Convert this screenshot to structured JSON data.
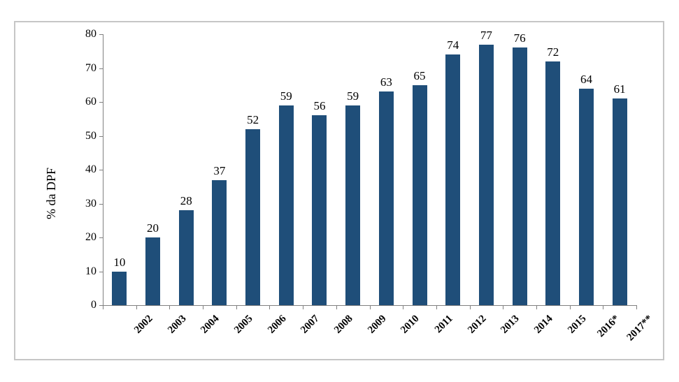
{
  "chart_data": {
    "type": "bar",
    "title": "",
    "ylabel": "% da DPF",
    "xlabel": "",
    "ylim": [
      0,
      80
    ],
    "ytick_interval": 10,
    "yticks": [
      0,
      10,
      20,
      30,
      40,
      50,
      60,
      70,
      80
    ],
    "grid": false,
    "legend": null,
    "data_labels_shown": true,
    "categories": [
      "2002",
      "2003",
      "2004",
      "2005",
      "2006",
      "2007",
      "2008",
      "2009",
      "2010",
      "2011",
      "2012",
      "2013",
      "2014",
      "2015",
      "2016*",
      "2017**"
    ],
    "values": [
      10,
      20,
      28,
      37,
      52,
      59,
      56,
      59,
      63,
      65,
      74,
      77,
      76,
      72,
      64,
      61
    ],
    "colors": {
      "bar_fill": "#1F4E79",
      "axis_line": "#808080",
      "frame_border": "#C6C6C6",
      "text": "#000000",
      "background": "#FFFFFF"
    }
  }
}
